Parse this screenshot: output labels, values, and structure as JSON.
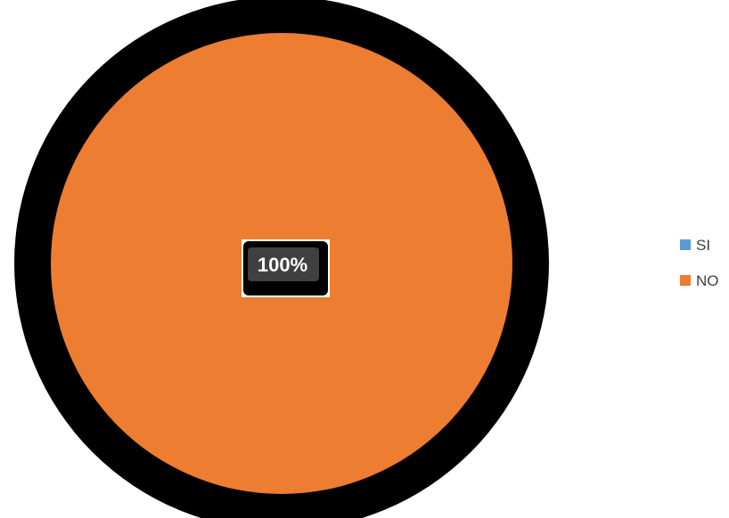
{
  "chart_data": {
    "type": "pie",
    "categories": [
      "SI",
      "NO"
    ],
    "values": [
      0,
      100
    ],
    "data_labels": [
      "",
      "100%"
    ],
    "colors": {
      "SI": "#5b9bd5",
      "NO": "#ed7d31",
      "outline": "#000000",
      "label_box": "#404040",
      "label_text": "#ffffff"
    },
    "legend": {
      "position": "right",
      "items": [
        {
          "label": "SI",
          "color": "#5b9bd5"
        },
        {
          "label": "NO",
          "color": "#ed7d31"
        }
      ]
    }
  }
}
